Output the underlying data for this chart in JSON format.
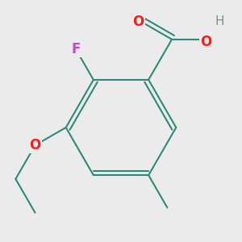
{
  "bg_color": "#ebebeb",
  "bond_color": "#2d8a7a",
  "bond_width": 1.5,
  "atom_colors": {
    "O": "#ff1a1a",
    "F": "#cc44cc",
    "C": "#2d8a7a",
    "H": "#7a9090"
  },
  "font_size": 12,
  "font_size_H": 11
}
